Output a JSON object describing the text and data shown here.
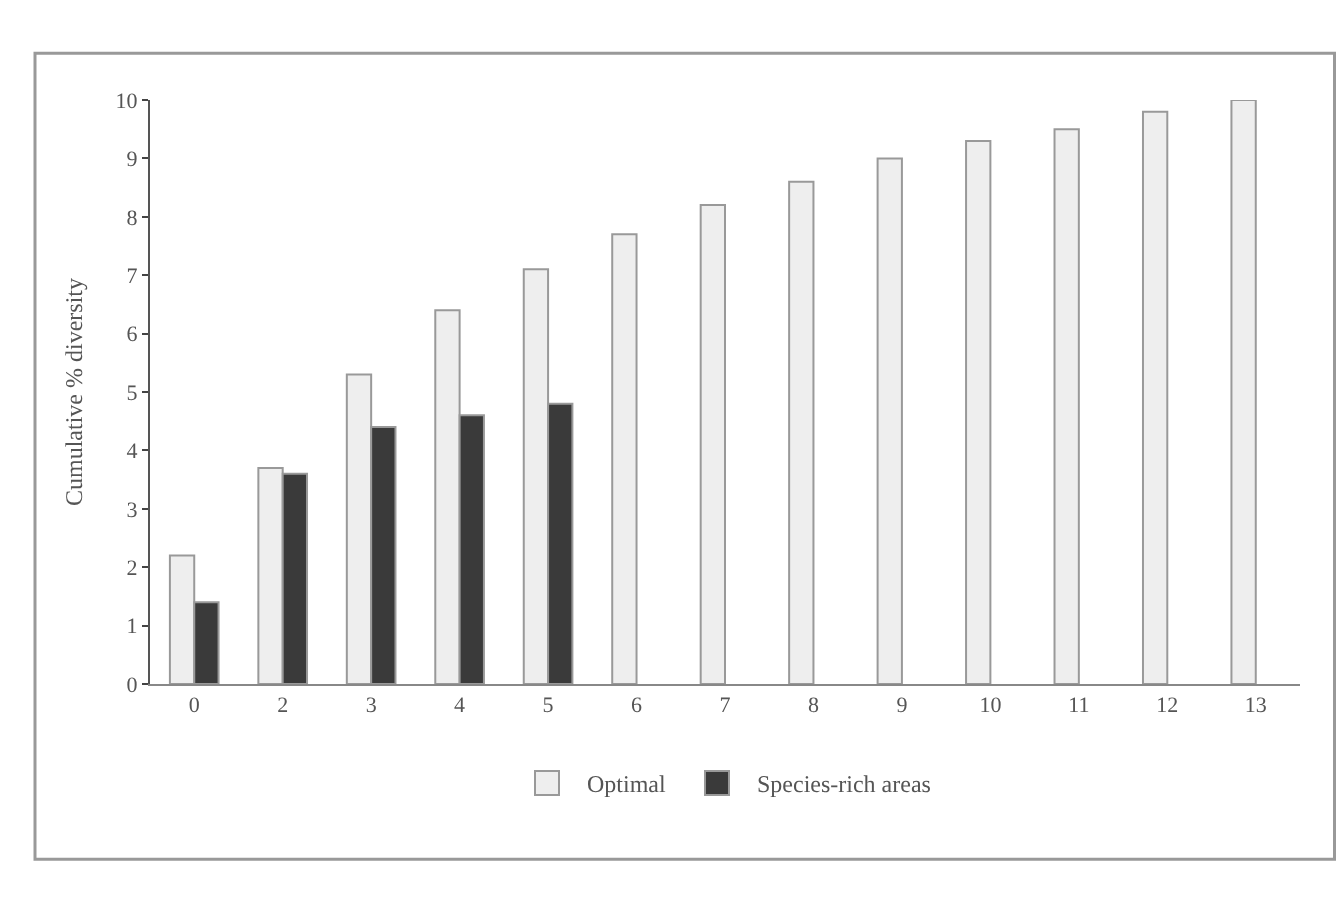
{
  "chart_data": {
    "type": "bar",
    "ylabel": "Cumulative % diversity",
    "categories": [
      "0",
      "2",
      "3",
      "4",
      "5",
      "6",
      "7",
      "8",
      "9",
      "10",
      "11",
      "12",
      "13"
    ],
    "series": [
      {
        "name": "Optimal",
        "color": "#eeeeee",
        "values": [
          2.2,
          3.7,
          5.3,
          6.4,
          7.1,
          7.7,
          8.2,
          8.6,
          9.0,
          9.3,
          9.5,
          9.8,
          10.0
        ]
      },
      {
        "name": "Species-rich areas",
        "color": "#3a3a3a",
        "values": [
          1.4,
          3.6,
          4.4,
          4.6,
          4.8,
          null,
          null,
          null,
          null,
          null,
          null,
          null,
          null
        ]
      }
    ],
    "ylim": [
      0,
      10
    ],
    "yticks": [
      0,
      1,
      2,
      3,
      4,
      5,
      6,
      7,
      8,
      9,
      10
    ],
    "grid": false,
    "legend": "bottom"
  }
}
